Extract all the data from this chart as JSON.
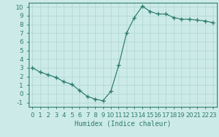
{
  "x": [
    0,
    1,
    2,
    3,
    4,
    5,
    6,
    7,
    8,
    9,
    10,
    11,
    12,
    13,
    14,
    15,
    16,
    17,
    18,
    19,
    20,
    21,
    22,
    23
  ],
  "y": [
    3.0,
    2.5,
    2.2,
    1.9,
    1.4,
    1.1,
    0.4,
    -0.3,
    -0.6,
    -0.8,
    0.3,
    3.3,
    7.0,
    8.8,
    10.1,
    9.5,
    9.2,
    9.2,
    8.8,
    8.6,
    8.6,
    8.5,
    8.4,
    8.2
  ],
  "line_color": "#2a7a6e",
  "marker": "+",
  "marker_size": 4,
  "marker_lw": 1.0,
  "bg_color": "#cceae8",
  "grid_color": "#b0d8d5",
  "xlabel": "Humidex (Indice chaleur)",
  "xlim": [
    -0.5,
    23.5
  ],
  "ylim": [
    -1.5,
    10.5
  ],
  "yticks": [
    -1,
    0,
    1,
    2,
    3,
    4,
    5,
    6,
    7,
    8,
    9,
    10
  ],
  "xticks": [
    0,
    1,
    2,
    3,
    4,
    5,
    6,
    7,
    8,
    9,
    10,
    11,
    12,
    13,
    14,
    15,
    16,
    17,
    18,
    19,
    20,
    21,
    22,
    23
  ],
  "tick_color": "#2a7a6e",
  "spine_color": "#2a7a6e",
  "label_fontsize": 7,
  "tick_fontsize": 6.5
}
